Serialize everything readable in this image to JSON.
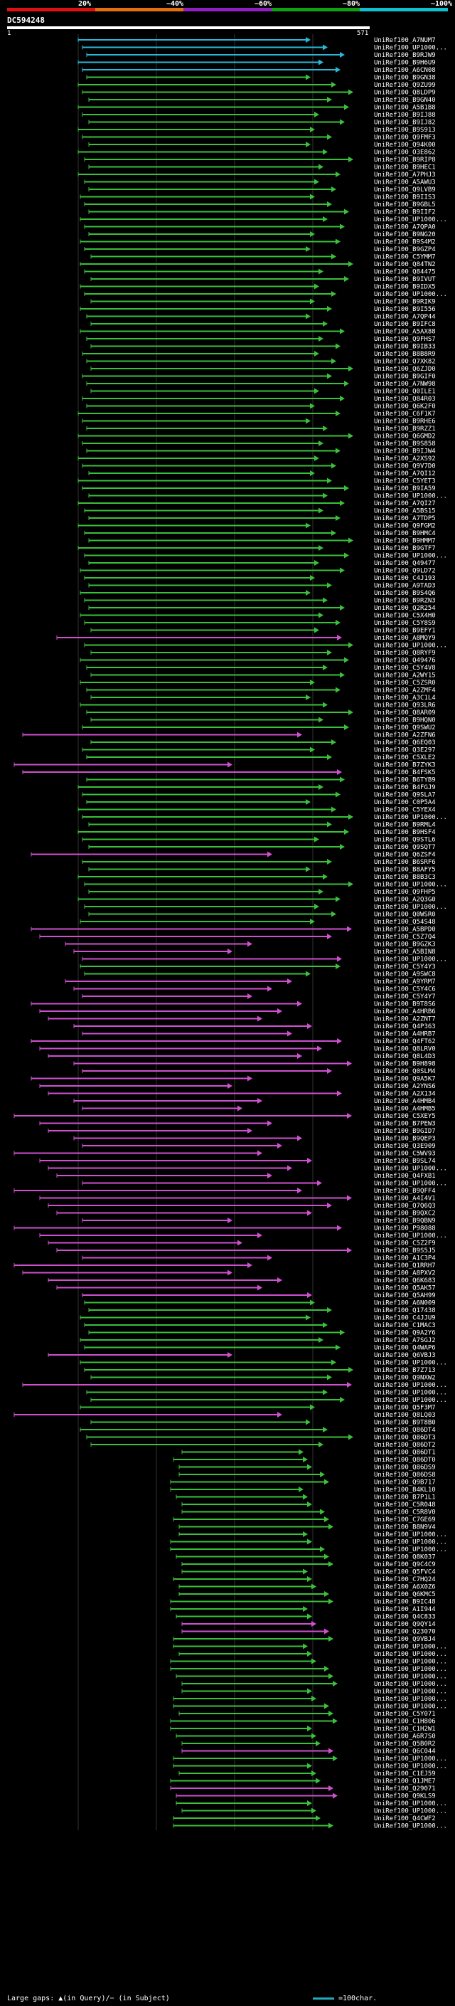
{
  "legend": {
    "percent_labels": [
      "20%",
      "~40%",
      "~60%",
      "~80%",
      "~100%"
    ],
    "colors": [
      "#e01010",
      "#e07010",
      "#9020c0",
      "#10a010",
      "#10c0d0"
    ]
  },
  "query": {
    "id": "DC594248",
    "start": "1",
    "end": "571"
  },
  "hits": [
    {
      "label": "UniRef100_A7NUM7",
      "color": "#2ab8d8"
    },
    {
      "label": "UniRef100_UP1000...",
      "color": "#2ab8d8"
    },
    {
      "label": "UniRef100_B9RJW9",
      "color": "#2ab8d8"
    },
    {
      "label": "UniRef100_B9H6U9",
      "color": "#2ab8d8"
    },
    {
      "label": "UniRef100_A6CN08",
      "color": "#2ab8d8"
    },
    {
      "label": "UniRef100_B9GN38",
      "color": "#3ac03a"
    },
    {
      "label": "UniRef100_Q9ZU99",
      "color": "#3ac03a"
    },
    {
      "label": "UniRef100_Q8LDP9",
      "color": "#3ac03a"
    },
    {
      "label": "UniRef100_B9GN40",
      "color": "#3ac03a"
    },
    {
      "label": "UniRef100_A5B1B8",
      "color": "#3ac03a"
    },
    {
      "label": "UniRef100_B9IJ88",
      "color": "#3ac03a"
    },
    {
      "label": "UniRef100_B9IJ82",
      "color": "#3ac03a"
    },
    {
      "label": "UniRef100_B9S913",
      "color": "#3ac03a"
    },
    {
      "label": "UniRef100_Q9FMF3",
      "color": "#3ac03a"
    },
    {
      "label": "UniRef100_Q94K00",
      "color": "#3ac03a"
    },
    {
      "label": "UniRef100_O3E862",
      "color": "#3ac03a"
    },
    {
      "label": "UniRef100_B9RIP8",
      "color": "#3ac03a"
    },
    {
      "label": "UniRef100_B9HEC1",
      "color": "#3ac03a"
    },
    {
      "label": "UniRef100_A7PHJ3",
      "color": "#3ac03a"
    },
    {
      "label": "UniRef100_A5AWU3",
      "color": "#3ac03a"
    },
    {
      "label": "UniRef100_Q9LVB9",
      "color": "#3ac03a"
    },
    {
      "label": "UniRef100_B9IIS3",
      "color": "#3ac03a"
    },
    {
      "label": "UniRef100_B9GBL5",
      "color": "#3ac03a"
    },
    {
      "label": "UniRef100_B9IIF2",
      "color": "#3ac03a"
    },
    {
      "label": "UniRef100_UP1000...",
      "color": "#3ac03a"
    },
    {
      "label": "UniRef100_A7QPA0",
      "color": "#3ac03a"
    },
    {
      "label": "UniRef100_B9NG20",
      "color": "#3ac03a"
    },
    {
      "label": "UniRef100_B9S4M2",
      "color": "#3ac03a"
    },
    {
      "label": "UniRef100_B9GZP4",
      "color": "#3ac03a"
    },
    {
      "label": "UniRef100_C5YMM7",
      "color": "#3ac03a"
    },
    {
      "label": "UniRef100_Q84TN2",
      "color": "#3ac03a"
    },
    {
      "label": "UniRef100_Q84475",
      "color": "#3ac03a"
    },
    {
      "label": "UniRef100_B9IVUT",
      "color": "#3ac03a"
    },
    {
      "label": "UniRef100_B9IDX5",
      "color": "#3ac03a"
    },
    {
      "label": "UniRef100_UP1000...",
      "color": "#3ac03a"
    },
    {
      "label": "UniRef100_B9RIK9",
      "color": "#3ac03a"
    },
    {
      "label": "UniRef100_B9I556",
      "color": "#3ac03a"
    },
    {
      "label": "UniRef100_A7QP44",
      "color": "#3ac03a"
    },
    {
      "label": "UniRef100_B9IFC8",
      "color": "#3ac03a"
    },
    {
      "label": "UniRef100_A5AX88",
      "color": "#3ac03a"
    },
    {
      "label": "UniRef100_Q9FHS7",
      "color": "#3ac03a"
    },
    {
      "label": "UniRef100_B9IB33",
      "color": "#3ac03a"
    },
    {
      "label": "UniRef100_B8B8R9",
      "color": "#3ac03a"
    },
    {
      "label": "UniRef100_Q7XK82",
      "color": "#3ac03a"
    },
    {
      "label": "UniRef100_Q6ZJD0",
      "color": "#3ac03a"
    },
    {
      "label": "UniRef100_B9GIF0",
      "color": "#3ac03a"
    },
    {
      "label": "UniRef100_A7NW98",
      "color": "#3ac03a"
    },
    {
      "label": "UniRef100_Q0ILE1",
      "color": "#3ac03a"
    },
    {
      "label": "UniRef100_Q84R03",
      "color": "#3ac03a"
    },
    {
      "label": "UniRef100_Q6K2F0",
      "color": "#3ac03a"
    },
    {
      "label": "UniRef100_C6F1K7",
      "color": "#3ac03a"
    },
    {
      "label": "UniRef100_B9RHE6",
      "color": "#3ac03a"
    },
    {
      "label": "UniRef100_B9RZZ1",
      "color": "#3ac03a"
    },
    {
      "label": "UniRef100_Q6GMD2",
      "color": "#3ac03a"
    },
    {
      "label": "UniRef100_B9S858",
      "color": "#3ac03a"
    },
    {
      "label": "UniRef100_B9IJW4",
      "color": "#3ac03a"
    },
    {
      "label": "UniRef100_A2XS92",
      "color": "#3ac03a"
    },
    {
      "label": "UniRef100_Q9V7D0",
      "color": "#3ac03a"
    },
    {
      "label": "UniRef100_A7QI12",
      "color": "#3ac03a"
    },
    {
      "label": "UniRef100_C5YET3",
      "color": "#3ac03a"
    },
    {
      "label": "UniRef100_B9IA59",
      "color": "#3ac03a"
    },
    {
      "label": "UniRef100_UP1000...",
      "color": "#3ac03a"
    },
    {
      "label": "UniRef100_A7QI27",
      "color": "#3ac03a"
    },
    {
      "label": "UniRef100_A5BS15",
      "color": "#3ac03a"
    },
    {
      "label": "UniRef100_A7TDP5",
      "color": "#3ac03a"
    },
    {
      "label": "UniRef100_Q9FGM2",
      "color": "#3ac03a"
    },
    {
      "label": "UniRef100_B9HMC4",
      "color": "#3ac03a"
    },
    {
      "label": "UniRef100_B9HMM7",
      "color": "#3ac03a"
    },
    {
      "label": "UniRef100_B9GTF7",
      "color": "#3ac03a"
    },
    {
      "label": "UniRef100_UP1000...",
      "color": "#3ac03a"
    },
    {
      "label": "UniRef100_Q49477",
      "color": "#3ac03a"
    },
    {
      "label": "UniRef100_Q9LD72",
      "color": "#3ac03a"
    },
    {
      "label": "UniRef100_C4J193",
      "color": "#3ac03a"
    },
    {
      "label": "UniRef100_A9TAD3",
      "color": "#3ac03a"
    },
    {
      "label": "UniRef100_B9S4Q6",
      "color": "#3ac03a"
    },
    {
      "label": "UniRef100_B9RZN3",
      "color": "#3ac03a"
    },
    {
      "label": "UniRef100_Q2R254",
      "color": "#3ac03a"
    },
    {
      "label": "UniRef100_C5X4H0",
      "color": "#3ac03a"
    },
    {
      "label": "UniRef100_C5Y8S9",
      "color": "#3ac03a"
    },
    {
      "label": "UniRef100_B9EFY1",
      "color": "#3ac03a"
    },
    {
      "label": "UniRef100_A8MQY9",
      "color": "#d050d0"
    },
    {
      "label": "UniRef100_UP1000...",
      "color": "#3ac03a"
    },
    {
      "label": "UniRef100_Q8RYF9",
      "color": "#3ac03a"
    },
    {
      "label": "UniRef100_Q49476",
      "color": "#3ac03a"
    },
    {
      "label": "UniRef100_C5Y4V8",
      "color": "#3ac03a"
    },
    {
      "label": "UniRef100_A2WY15",
      "color": "#3ac03a"
    },
    {
      "label": "UniRef100_C5ZSR0",
      "color": "#3ac03a"
    },
    {
      "label": "UniRef100_A2ZMF4",
      "color": "#3ac03a"
    },
    {
      "label": "UniRef100_A3C1L4",
      "color": "#3ac03a"
    },
    {
      "label": "UniRef100_Q93LR6",
      "color": "#3ac03a"
    },
    {
      "label": "UniRef100_Q8AR09",
      "color": "#3ac03a"
    },
    {
      "label": "UniRef100_B9HQN0",
      "color": "#3ac03a"
    },
    {
      "label": "UniRef100_Q9SWU2",
      "color": "#3ac03a"
    },
    {
      "label": "UniRef100_A2ZFN6",
      "color": "#d050d0"
    },
    {
      "label": "UniRef100_Q6EQ03",
      "color": "#3ac03a"
    },
    {
      "label": "UniRef100_Q3E297",
      "color": "#3ac03a"
    },
    {
      "label": "UniRef100_C5XLE2",
      "color": "#3ac03a"
    },
    {
      "label": "UniRef100_B7ZYK3",
      "color": "#d050d0"
    },
    {
      "label": "UniRef100_B4FSK5",
      "color": "#d050d0"
    },
    {
      "label": "UniRef100_B6TYB9",
      "color": "#3ac03a"
    },
    {
      "label": "UniRef100_B4FGJ9",
      "color": "#3ac03a"
    },
    {
      "label": "UniRef100_Q9SLA7",
      "color": "#3ac03a"
    },
    {
      "label": "UniRef100_C0P5A4",
      "color": "#3ac03a"
    },
    {
      "label": "UniRef100_C5YEX4",
      "color": "#3ac03a"
    },
    {
      "label": "UniRef100_UP1000...",
      "color": "#3ac03a"
    },
    {
      "label": "UniRef100_B9RML4",
      "color": "#3ac03a"
    },
    {
      "label": "UniRef100_B9HSF4",
      "color": "#3ac03a"
    },
    {
      "label": "UniRef100_Q9STL6",
      "color": "#3ac03a"
    },
    {
      "label": "UniRef100_Q9SQT7",
      "color": "#3ac03a"
    },
    {
      "label": "UniRef100_Q6ZSF4",
      "color": "#d050d0"
    },
    {
      "label": "UniRef100_B6SRF6",
      "color": "#3ac03a"
    },
    {
      "label": "UniRef100_B8AFY5",
      "color": "#3ac03a"
    },
    {
      "label": "UniRef100_B8B3C3",
      "color": "#3ac03a"
    },
    {
      "label": "UniRef100_UP1000...",
      "color": "#3ac03a"
    },
    {
      "label": "UniRef100_Q9FHP5",
      "color": "#3ac03a"
    },
    {
      "label": "UniRef100_A2Q3G0",
      "color": "#3ac03a"
    },
    {
      "label": "UniRef100_UP1000...",
      "color": "#3ac03a"
    },
    {
      "label": "UniRef100_Q0WSR0",
      "color": "#3ac03a"
    },
    {
      "label": "UniRef100_Q54S48",
      "color": "#3ac03a"
    },
    {
      "label": "UniRef100_A5BPD0",
      "color": "#d050d0"
    },
    {
      "label": "UniRef100_C5Z7Q4",
      "color": "#d050d0"
    },
    {
      "label": "UniRef100_B9GZK3",
      "color": "#d050d0"
    },
    {
      "label": "UniRef100_A5BIN8",
      "color": "#d050d0"
    },
    {
      "label": "UniRef100_UP1000...",
      "color": "#d050d0"
    },
    {
      "label": "UniRef100_C5Y4Y3",
      "color": "#3ac03a"
    },
    {
      "label": "UniRef100_A9SWC8",
      "color": "#3ac03a"
    },
    {
      "label": "UniRef100_A9YRM7",
      "color": "#d050d0"
    },
    {
      "label": "UniRef100_C5Y4C6",
      "color": "#d050d0"
    },
    {
      "label": "UniRef100_C5Y4Y7",
      "color": "#d050d0"
    },
    {
      "label": "UniRef100_B9T8S6",
      "color": "#d050d0"
    },
    {
      "label": "UniRef100_A4HRB6",
      "color": "#d050d0"
    },
    {
      "label": "UniRef100_A2ZNT7",
      "color": "#d050d0"
    },
    {
      "label": "UniRef100_Q4P363",
      "color": "#d050d0"
    },
    {
      "label": "UniRef100_A4HRB7",
      "color": "#d050d0"
    },
    {
      "label": "UniRef100_Q4FT62",
      "color": "#d050d0"
    },
    {
      "label": "UniRef100_Q8LRV0",
      "color": "#d050d0"
    },
    {
      "label": "UniRef100_Q8L4D3",
      "color": "#d050d0"
    },
    {
      "label": "UniRef100_B9H898",
      "color": "#d050d0"
    },
    {
      "label": "UniRef100_Q0SLM4",
      "color": "#d050d0"
    },
    {
      "label": "UniRef100_Q9A5K7",
      "color": "#d050d0"
    },
    {
      "label": "UniRef100_A2YNS6",
      "color": "#d050d0"
    },
    {
      "label": "UniRef100_A2X134",
      "color": "#d050d0"
    },
    {
      "label": "UniRef100_A4HMB4",
      "color": "#d050d0"
    },
    {
      "label": "UniRef100_A4HMB5",
      "color": "#d050d0"
    },
    {
      "label": "UniRef100_C5XEY5",
      "color": "#d050d0"
    },
    {
      "label": "UniRef100_B7PEW3",
      "color": "#d050d0"
    },
    {
      "label": "UniRef100_B9GID7",
      "color": "#d050d0"
    },
    {
      "label": "UniRef100_B9QEP3",
      "color": "#d050d0"
    },
    {
      "label": "UniRef100_Q3E909",
      "color": "#d050d0"
    },
    {
      "label": "UniRef100_C5WV93",
      "color": "#d050d0"
    },
    {
      "label": "UniRef100_B9SL74",
      "color": "#d050d0"
    },
    {
      "label": "UniRef100_UP1000...",
      "color": "#d050d0"
    },
    {
      "label": "UniRef100_Q4FXB1",
      "color": "#d050d0"
    },
    {
      "label": "UniRef100_UP1000...",
      "color": "#d050d0"
    },
    {
      "label": "UniRef100_B9QFF4",
      "color": "#d050d0"
    },
    {
      "label": "UniRef100_A4I4V1",
      "color": "#d050d0"
    },
    {
      "label": "UniRef100_Q7Q6Q3",
      "color": "#d050d0"
    },
    {
      "label": "UniRef100_B9QXC2",
      "color": "#d050d0"
    },
    {
      "label": "UniRef100_B9QBN9",
      "color": "#d050d0"
    },
    {
      "label": "UniRef100_P98088",
      "color": "#d050d0"
    },
    {
      "label": "UniRef100_UP1000...",
      "color": "#d050d0"
    },
    {
      "label": "UniRef100_C5Z2F9",
      "color": "#d050d0"
    },
    {
      "label": "UniRef100_B9S5J5",
      "color": "#d050d0"
    },
    {
      "label": "UniRef100_A1C3P4",
      "color": "#d050d0"
    },
    {
      "label": "UniRef100_Q1RRH7",
      "color": "#d050d0"
    },
    {
      "label": "UniRef100_A8PXV2",
      "color": "#d050d0"
    },
    {
      "label": "UniRef100_Q6K683",
      "color": "#d050d0"
    },
    {
      "label": "UniRef100_Q5AK57",
      "color": "#d050d0"
    },
    {
      "label": "UniRef100_Q5AH99",
      "color": "#d050d0"
    },
    {
      "label": "UniRef100_A6N009",
      "color": "#3ac03a"
    },
    {
      "label": "UniRef100_Q17438",
      "color": "#3ac03a"
    },
    {
      "label": "UniRef100_C4JJU9",
      "color": "#3ac03a"
    },
    {
      "label": "UniRef100_C1MAC3",
      "color": "#3ac03a"
    },
    {
      "label": "UniRef100_Q9A2Y6",
      "color": "#3ac03a"
    },
    {
      "label": "UniRef100_A7SGJ2",
      "color": "#3ac03a"
    },
    {
      "label": "UniRef100_Q4WAP6",
      "color": "#3ac03a"
    },
    {
      "label": "UniRef100_Q6VBJ3",
      "color": "#d050d0"
    },
    {
      "label": "UniRef100_UP1000...",
      "color": "#3ac03a"
    },
    {
      "label": "UniRef100_B7Z713",
      "color": "#3ac03a"
    },
    {
      "label": "UniRef100_Q9NXW2",
      "color": "#3ac03a"
    },
    {
      "label": "UniRef100_UP1000...",
      "color": "#d050d0"
    },
    {
      "label": "UniRef100_UP1000...",
      "color": "#3ac03a"
    },
    {
      "label": "UniRef100_UP1000...",
      "color": "#3ac03a"
    },
    {
      "label": "UniRef100_Q5F3M7",
      "color": "#3ac03a"
    },
    {
      "label": "UniRef100_Q8LQ03",
      "color": "#d050d0"
    },
    {
      "label": "UniRef100_B9T8B0",
      "color": "#3ac03a"
    },
    {
      "label": "UniRef100_Q86DT4",
      "color": "#3ac03a"
    },
    {
      "label": "UniRef100_Q86DT3",
      "color": "#3ac03a"
    },
    {
      "label": "UniRef100_Q86DT2",
      "color": "#3ac03a"
    },
    {
      "label": "UniRef100_Q86DT1",
      "color": "#3ac03a"
    },
    {
      "label": "UniRef100_Q86DT0",
      "color": "#3ac03a"
    },
    {
      "label": "UniRef100_Q86DS9",
      "color": "#3ac03a"
    },
    {
      "label": "UniRef100_Q86DS8",
      "color": "#3ac03a"
    },
    {
      "label": "UniRef100_Q9B717",
      "color": "#3ac03a"
    },
    {
      "label": "UniRef100_B4KL10",
      "color": "#3ac03a"
    },
    {
      "label": "UniRef100_B7P1L1",
      "color": "#3ac03a"
    },
    {
      "label": "UniRef100_C5R048",
      "color": "#3ac03a"
    },
    {
      "label": "UniRef100_C5R8V0",
      "color": "#3ac03a"
    },
    {
      "label": "UniRef100_C7GE69",
      "color": "#3ac03a"
    },
    {
      "label": "UniRef100_B8N9V4",
      "color": "#3ac03a"
    },
    {
      "label": "UniRef100_UP1000...",
      "color": "#3ac03a"
    },
    {
      "label": "UniRef100_UP1000...",
      "color": "#3ac03a"
    },
    {
      "label": "UniRef100_UP1000...",
      "color": "#3ac03a"
    },
    {
      "label": "UniRef100_Q8K037",
      "color": "#3ac03a"
    },
    {
      "label": "UniRef100_Q9C4C9",
      "color": "#3ac03a"
    },
    {
      "label": "UniRef100_Q5FVC4",
      "color": "#3ac03a"
    },
    {
      "label": "UniRef100_C7HQ24",
      "color": "#3ac03a"
    },
    {
      "label": "UniRef100_A6X0Z6",
      "color": "#3ac03a"
    },
    {
      "label": "UniRef100_Q6KMC5",
      "color": "#3ac03a"
    },
    {
      "label": "UniRef100_B9IC48",
      "color": "#3ac03a"
    },
    {
      "label": "UniRef100_A1I944",
      "color": "#3ac03a"
    },
    {
      "label": "UniRef100_Q4C833",
      "color": "#3ac03a"
    },
    {
      "label": "UniRef100_Q9QY14",
      "color": "#d050d0"
    },
    {
      "label": "UniRef100_Q23070",
      "color": "#d050d0"
    },
    {
      "label": "UniRef100_Q9VBJ4",
      "color": "#3ac03a"
    },
    {
      "label": "UniRef100_UP1000...",
      "color": "#3ac03a"
    },
    {
      "label": "UniRef100_UP1000...",
      "color": "#3ac03a"
    },
    {
      "label": "UniRef100_UP1000...",
      "color": "#3ac03a"
    },
    {
      "label": "UniRef100_UP1000...",
      "color": "#3ac03a"
    },
    {
      "label": "UniRef100_UP1000...",
      "color": "#3ac03a"
    },
    {
      "label": "UniRef100_UP1000...",
      "color": "#3ac03a"
    },
    {
      "label": "UniRef100_UP1000...",
      "color": "#3ac03a"
    },
    {
      "label": "UniRef100_UP1000...",
      "color": "#3ac03a"
    },
    {
      "label": "UniRef100_UP1000...",
      "color": "#3ac03a"
    },
    {
      "label": "UniRef100_C5Y071",
      "color": "#3ac03a"
    },
    {
      "label": "UniRef100_C1H806",
      "color": "#3ac03a"
    },
    {
      "label": "UniRef100_C1H2W1",
      "color": "#3ac03a"
    },
    {
      "label": "UniRef100_A6R7S0",
      "color": "#3ac03a"
    },
    {
      "label": "UniRef100_Q5B0R2",
      "color": "#3ac03a"
    },
    {
      "label": "UniRef100_Q6C044",
      "color": "#d050d0"
    },
    {
      "label": "UniRef100_UP1000...",
      "color": "#3ac03a"
    },
    {
      "label": "UniRef100_UP1000...",
      "color": "#3ac03a"
    },
    {
      "label": "UniRef100_C1EJ59",
      "color": "#3ac03a"
    },
    {
      "label": "UniRef100_Q1JME7",
      "color": "#3ac03a"
    },
    {
      "label": "UniRef100_Q29071",
      "color": "#d050d0"
    },
    {
      "label": "UniRef100_Q9KLS9",
      "color": "#d050d0"
    },
    {
      "label": "UniRef100_UP1000...",
      "color": "#3ac03a"
    },
    {
      "label": "UniRef100_UP1000...",
      "color": "#3ac03a"
    },
    {
      "label": "UniRef100_Q4CWF2",
      "color": "#3ac03a"
    },
    {
      "label": "UniRef100_UP1000...",
      "color": "#3ac03a"
    }
  ],
  "footer": {
    "large_gaps": "Large gaps: ▲(in Query)/− (in Subject)",
    "scale": "=100char."
  }
}
